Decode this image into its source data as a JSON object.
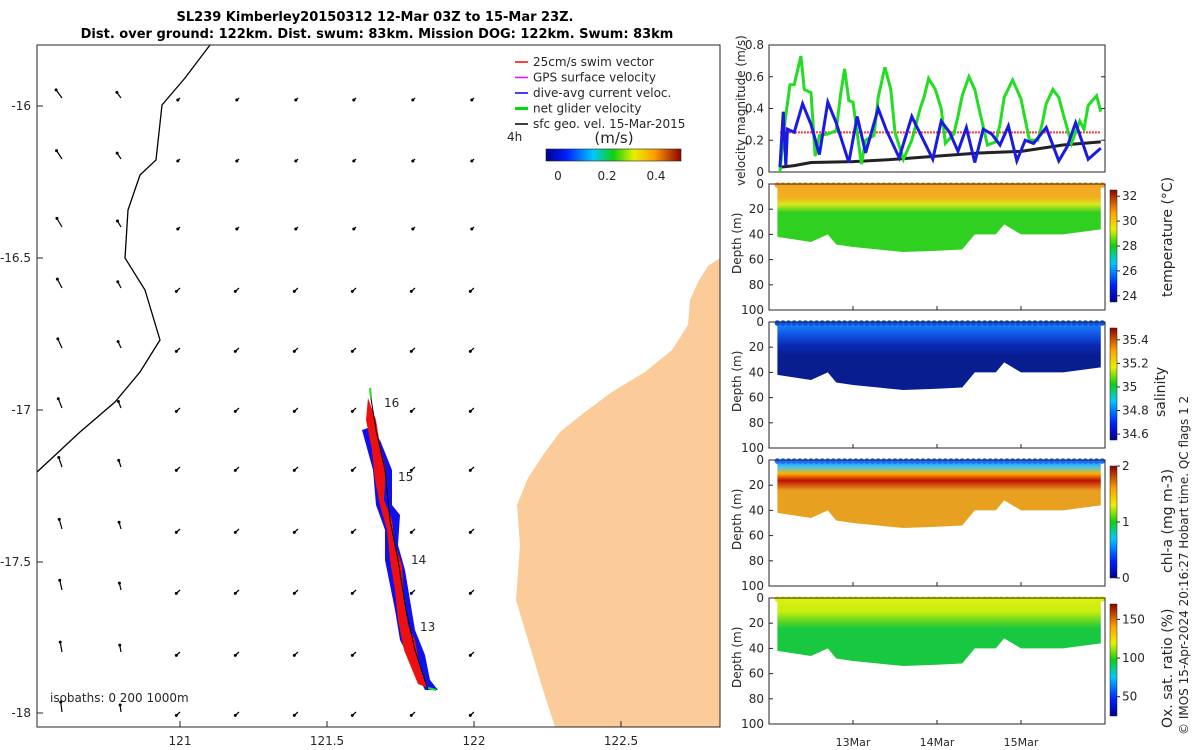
{
  "title_line1": "SL239 Kimberley20150312 12-Mar 03Z to 15-Mar 23Z.",
  "title_line2": "Dist. over ground: 122km. Dist. swum: 83km. Mission DOG: 122km. Swum: 83km",
  "map": {
    "legend": [
      "25cm/s swim vector",
      "GPS surface velocity",
      "dive-avg current veloc.",
      "net glider velocity",
      "sfc geo. vel. 15-Mar-2015"
    ],
    "legend_colors": [
      "#ff0000",
      "#ff00ff",
      "#0000ff",
      "#00dd00",
      "#000000"
    ],
    "interval_label": "4h",
    "colorbar_unit": "(m/s)",
    "colorbar_ticks": [
      "0",
      "0.2",
      "0.4"
    ],
    "x_ticks": [
      "121",
      "121.5",
      "122",
      "122.5"
    ],
    "y_ticks": [
      "-16",
      "-16.5",
      "-17",
      "-17.5",
      "-18"
    ],
    "day_labels": [
      "16",
      "15",
      "14",
      "13"
    ],
    "isobaths": "isobaths: 0   200  1000m",
    "land_color": "#fbcb9a"
  },
  "chart_data": [
    {
      "type": "line",
      "ylabel": "velocity magnitude (m/s)",
      "ylim": [
        0,
        0.8
      ],
      "y_ticks": [
        "0",
        "0.2",
        "0.4",
        "0.6",
        "0.8"
      ],
      "xlim_days": [
        12,
        16
      ],
      "series": [
        {
          "name": "net glider velocity",
          "color": "#22dd22",
          "x": [
            12.13,
            12.18,
            12.25,
            12.3,
            12.38,
            12.42,
            12.5,
            12.55,
            12.6,
            12.7,
            12.8,
            12.85,
            12.9,
            12.95,
            13.0,
            13.1,
            13.15,
            13.25,
            13.3,
            13.38,
            13.45,
            13.5,
            13.6,
            13.7,
            13.8,
            13.85,
            13.9,
            13.98,
            14.05,
            14.1,
            14.2,
            14.25,
            14.3,
            14.38,
            14.45,
            14.5,
            14.6,
            14.7,
            14.75,
            14.8,
            14.9,
            14.95,
            15.0,
            15.1,
            15.2,
            15.25,
            15.3,
            15.38,
            15.45,
            15.5,
            15.6,
            15.7,
            15.75,
            15.8,
            15.9,
            15.95
          ],
          "y": [
            0.0,
            0.28,
            0.55,
            0.55,
            0.73,
            0.52,
            0.5,
            0.1,
            0.23,
            0.24,
            0.26,
            0.48,
            0.65,
            0.45,
            0.44,
            0.05,
            0.2,
            0.23,
            0.47,
            0.66,
            0.52,
            0.25,
            0.08,
            0.2,
            0.4,
            0.48,
            0.59,
            0.52,
            0.4,
            0.18,
            0.24,
            0.35,
            0.48,
            0.6,
            0.52,
            0.4,
            0.17,
            0.19,
            0.3,
            0.47,
            0.58,
            0.52,
            0.46,
            0.2,
            0.2,
            0.3,
            0.43,
            0.52,
            0.47,
            0.37,
            0.18,
            0.32,
            0.27,
            0.42,
            0.48,
            0.38
          ]
        },
        {
          "name": "dive-avg current veloc.",
          "color": "#1a1ae0",
          "x": [
            12.13,
            12.17,
            12.2,
            12.22,
            12.3,
            12.4,
            12.5,
            12.6,
            12.7,
            12.8,
            12.95,
            13.05,
            13.15,
            13.3,
            13.4,
            13.55,
            13.7,
            13.82,
            13.95,
            14.05,
            14.15,
            14.25,
            14.35,
            14.45,
            14.55,
            14.65,
            14.75,
            14.85,
            14.95,
            15.05,
            15.15,
            15.3,
            15.45,
            15.55,
            15.65,
            15.8,
            15.95
          ],
          "y": [
            0.03,
            0.38,
            0.04,
            0.27,
            0.25,
            0.43,
            0.3,
            0.11,
            0.44,
            0.31,
            0.06,
            0.35,
            0.12,
            0.4,
            0.26,
            0.09,
            0.35,
            0.22,
            0.08,
            0.32,
            0.25,
            0.13,
            0.28,
            0.06,
            0.27,
            0.24,
            0.17,
            0.29,
            0.07,
            0.2,
            0.18,
            0.28,
            0.07,
            0.16,
            0.31,
            0.08,
            0.15
          ]
        },
        {
          "name": "25cm/s swim vector",
          "color": "#ff3333",
          "x": [
            12.13,
            15.95
          ],
          "y": [
            0.25,
            0.25
          ]
        },
        {
          "name": "sfc geo. vel.",
          "color": "#222222",
          "x": [
            12.13,
            12.3,
            12.5,
            13.0,
            13.5,
            14.0,
            14.5,
            15.0,
            15.5,
            15.95
          ],
          "y": [
            0.03,
            0.04,
            0.06,
            0.065,
            0.08,
            0.1,
            0.12,
            0.13,
            0.17,
            0.19
          ]
        }
      ]
    },
    {
      "type": "heatmap",
      "variable": "temperature",
      "cbar_label": "temperature (°C)",
      "cbar_ticks": [
        "32",
        "30",
        "28",
        "26",
        "24"
      ],
      "clim": [
        23.5,
        32.5
      ],
      "depth_ticks": [
        "0",
        "20",
        "40",
        "60",
        "80",
        "100"
      ]
    },
    {
      "type": "heatmap",
      "variable": "salinity",
      "cbar_label": "salinity",
      "cbar_ticks": [
        "35.4",
        "35.2",
        "35",
        "34.8",
        "34.6"
      ],
      "clim": [
        34.55,
        35.5
      ],
      "depth_ticks": [
        "0",
        "20",
        "40",
        "60",
        "80",
        "100"
      ]
    },
    {
      "type": "heatmap",
      "variable": "chl-a",
      "cbar_label": "chl-a (mg m-3)",
      "cbar_ticks": [
        "2",
        "1",
        "0"
      ],
      "clim": [
        0,
        2
      ],
      "depth_ticks": [
        "0",
        "20",
        "40",
        "60",
        "80",
        "100"
      ]
    },
    {
      "type": "heatmap",
      "variable": "oxygen saturation",
      "cbar_label": "Ox. sat. ratio (%)",
      "cbar_ticks": [
        "150",
        "100",
        "50"
      ],
      "clim": [
        25,
        170
      ],
      "depth_ticks": [
        "0",
        "20",
        "40",
        "60",
        "80",
        "100"
      ]
    }
  ],
  "profile_bottom_depth": {
    "day": [
      12.1,
      12.5,
      12.7,
      12.8,
      13.0,
      13.3,
      13.6,
      14.0,
      14.3,
      14.45,
      14.7,
      14.8,
      15.0,
      15.5,
      15.95
    ],
    "depth": [
      42,
      46,
      40,
      48,
      50,
      52,
      54,
      53,
      52,
      40,
      40,
      32,
      40,
      40,
      36
    ]
  },
  "time_ticks": [
    "13Mar",
    "14Mar",
    "15Mar"
  ],
  "depth_label": "Depth (m)",
  "footer": "© IMOS 15-Apr-2024 20:16:27 Hobart time. QC flags 1  2"
}
